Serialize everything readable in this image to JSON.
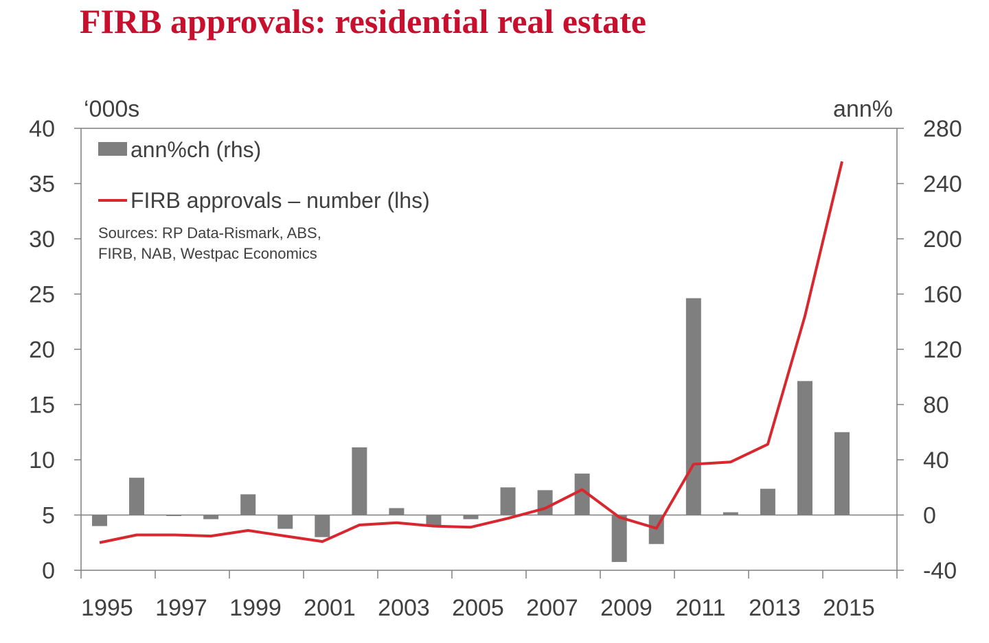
{
  "title": "FIRB approvals: residential real estate",
  "chart_data": {
    "type": "bar+line",
    "title": "FIRB approvals: residential real estate",
    "left_axis": {
      "unit": "‘000s",
      "ticks": [
        "0",
        "5",
        "10",
        "15",
        "20",
        "25",
        "30",
        "35",
        "40"
      ],
      "range": [
        0,
        40
      ]
    },
    "right_axis": {
      "unit": "ann%",
      "ticks": [
        "-40",
        "0",
        "40",
        "80",
        "120",
        "160",
        "200",
        "240",
        "280"
      ],
      "range": [
        -40,
        280
      ]
    },
    "x_ticks": [
      "1995",
      "1997",
      "1999",
      "2001",
      "2003",
      "2005",
      "2007",
      "2009",
      "2011",
      "2013",
      "2015"
    ],
    "categories": [
      "1995",
      "1996",
      "1997",
      "1998",
      "1999",
      "2000",
      "2001",
      "2002",
      "2003",
      "2004",
      "2005",
      "2006",
      "2007",
      "2008",
      "2009",
      "2010",
      "2011",
      "2012",
      "2013",
      "2014",
      "2015"
    ],
    "series": [
      {
        "name": "ann%ch (rhs)",
        "type": "bar",
        "axis": "right",
        "color": "#7f7f7f",
        "values": [
          -8,
          27,
          0,
          -3,
          15,
          -10,
          -16,
          49,
          5,
          -8,
          -3,
          20,
          18,
          30,
          -34,
          -21,
          157,
          2,
          19,
          97,
          60
        ]
      },
      {
        "name": "FIRB approvals – number (lhs)",
        "type": "line",
        "axis": "left",
        "color": "#d7282f",
        "values": [
          2.5,
          3.2,
          3.2,
          3.1,
          3.6,
          3.1,
          2.6,
          4.1,
          4.3,
          4.0,
          3.9,
          4.7,
          5.6,
          7.3,
          4.8,
          3.8,
          9.6,
          9.8,
          11.4,
          23.0,
          37.0
        ]
      }
    ],
    "notes": [
      "Sources: RP Data-Rismark, ABS,",
      "FIRB, NAB, Westpac Economics"
    ]
  }
}
